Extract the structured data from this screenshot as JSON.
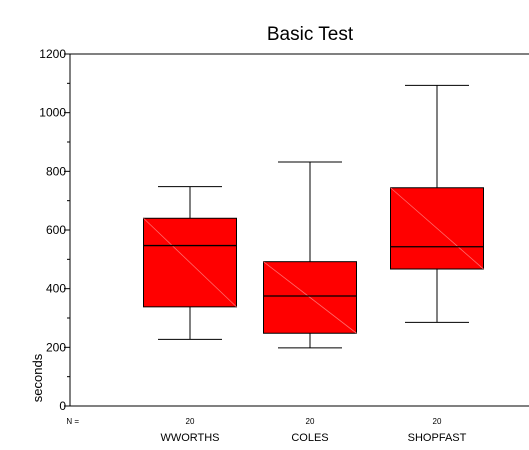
{
  "chart_data": {
    "type": "boxplot",
    "title": "Basic Test",
    "xlabel": "",
    "ylabel": "seconds",
    "ylim": [
      0,
      1200
    ],
    "yticks": [
      0,
      200,
      400,
      600,
      800,
      1000,
      1200
    ],
    "y_minor_step": 100,
    "n_prefix": "N =",
    "categories": [
      "WWORTHS",
      "COLES",
      "SHOPFAST"
    ],
    "n": [
      20,
      20,
      20
    ],
    "boxes": [
      {
        "label": "WWORTHS",
        "n": 20,
        "min": 227,
        "q1": 338,
        "median": 547,
        "q3": 640,
        "max": 748
      },
      {
        "label": "COLES",
        "n": 20,
        "min": 198,
        "q1": 248,
        "median": 375,
        "q3": 492,
        "max": 832
      },
      {
        "label": "SHOPFAST",
        "n": 20,
        "min": 285,
        "q1": 467,
        "median": 543,
        "q3": 744,
        "max": 1093
      }
    ],
    "box_color": "#ff0000",
    "grid": false,
    "legend": "none"
  }
}
